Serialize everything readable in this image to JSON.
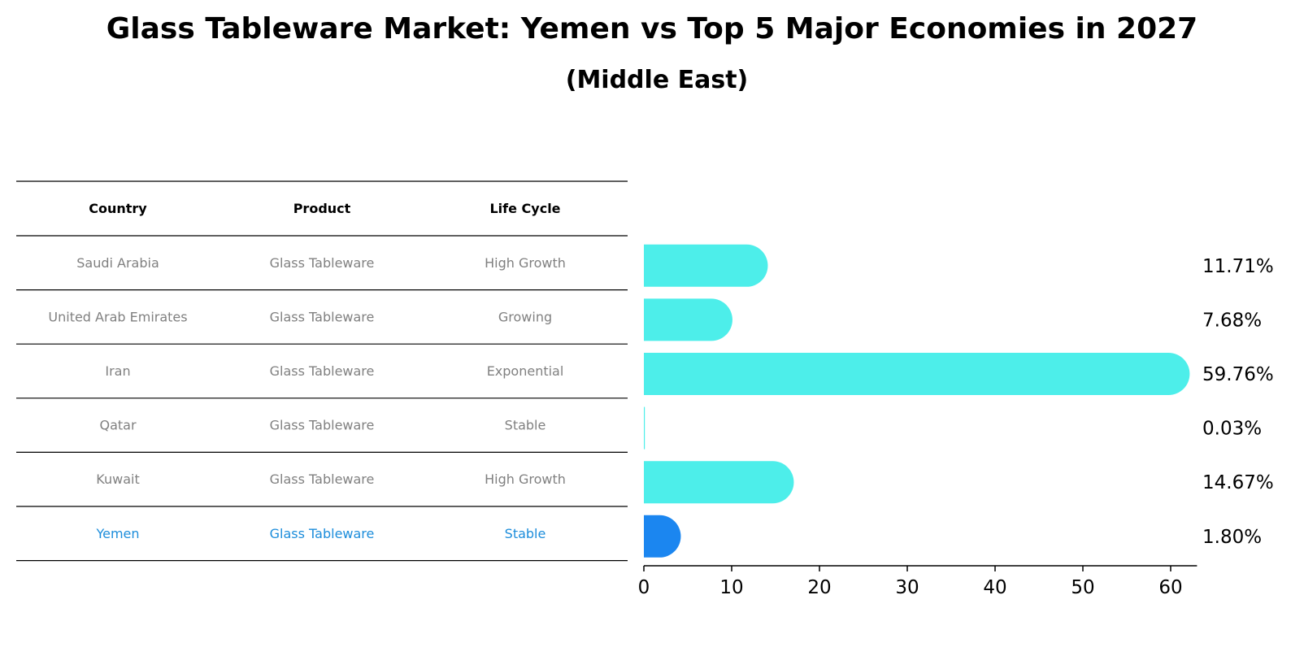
{
  "title": "Glass Tableware Market: Yemen vs Top 5 Major Economies in 2027",
  "subtitle": "(Middle East)",
  "table": {
    "headers": [
      "Country",
      "Product",
      "Life Cycle"
    ],
    "rows": [
      {
        "country": "Saudi Arabia",
        "product": "Glass Tableware",
        "life_cycle": "High Growth",
        "highlight": false
      },
      {
        "country": "United Arab Emirates",
        "product": "Glass Tableware",
        "life_cycle": "Growing",
        "highlight": false
      },
      {
        "country": "Iran",
        "product": "Glass Tableware",
        "life_cycle": "Exponential",
        "highlight": false
      },
      {
        "country": "Qatar",
        "product": "Glass Tableware",
        "life_cycle": "Stable",
        "highlight": false
      },
      {
        "country": "Kuwait",
        "product": "Glass Tableware",
        "life_cycle": "High Growth",
        "highlight": false
      },
      {
        "country": "Yemen",
        "product": "Glass Tableware",
        "life_cycle": "Stable",
        "highlight": true
      }
    ]
  },
  "chart_data": {
    "type": "bar",
    "orientation": "horizontal",
    "title": "Glass Tableware Market: Yemen vs Top 5 Major Economies in 2027",
    "subtitle": "(Middle East)",
    "categories": [
      "Saudi Arabia",
      "United Arab Emirates",
      "Iran",
      "Qatar",
      "Kuwait",
      "Yemen"
    ],
    "values": [
      11.71,
      7.68,
      59.76,
      0.03,
      14.67,
      1.8
    ],
    "value_labels": [
      "11.71%",
      "7.68%",
      "59.76%",
      "0.03%",
      "14.67%",
      "1.80%"
    ],
    "xlim": [
      0,
      63
    ],
    "xticks": [
      0,
      10,
      20,
      30,
      40,
      50,
      60
    ],
    "xlabel": "",
    "ylabel": "",
    "grid": false,
    "colors": {
      "default": "#4deeea",
      "highlight": "#1b86f0",
      "highlight_row_text": "#1c8ddb",
      "row_text": "#808080"
    }
  }
}
